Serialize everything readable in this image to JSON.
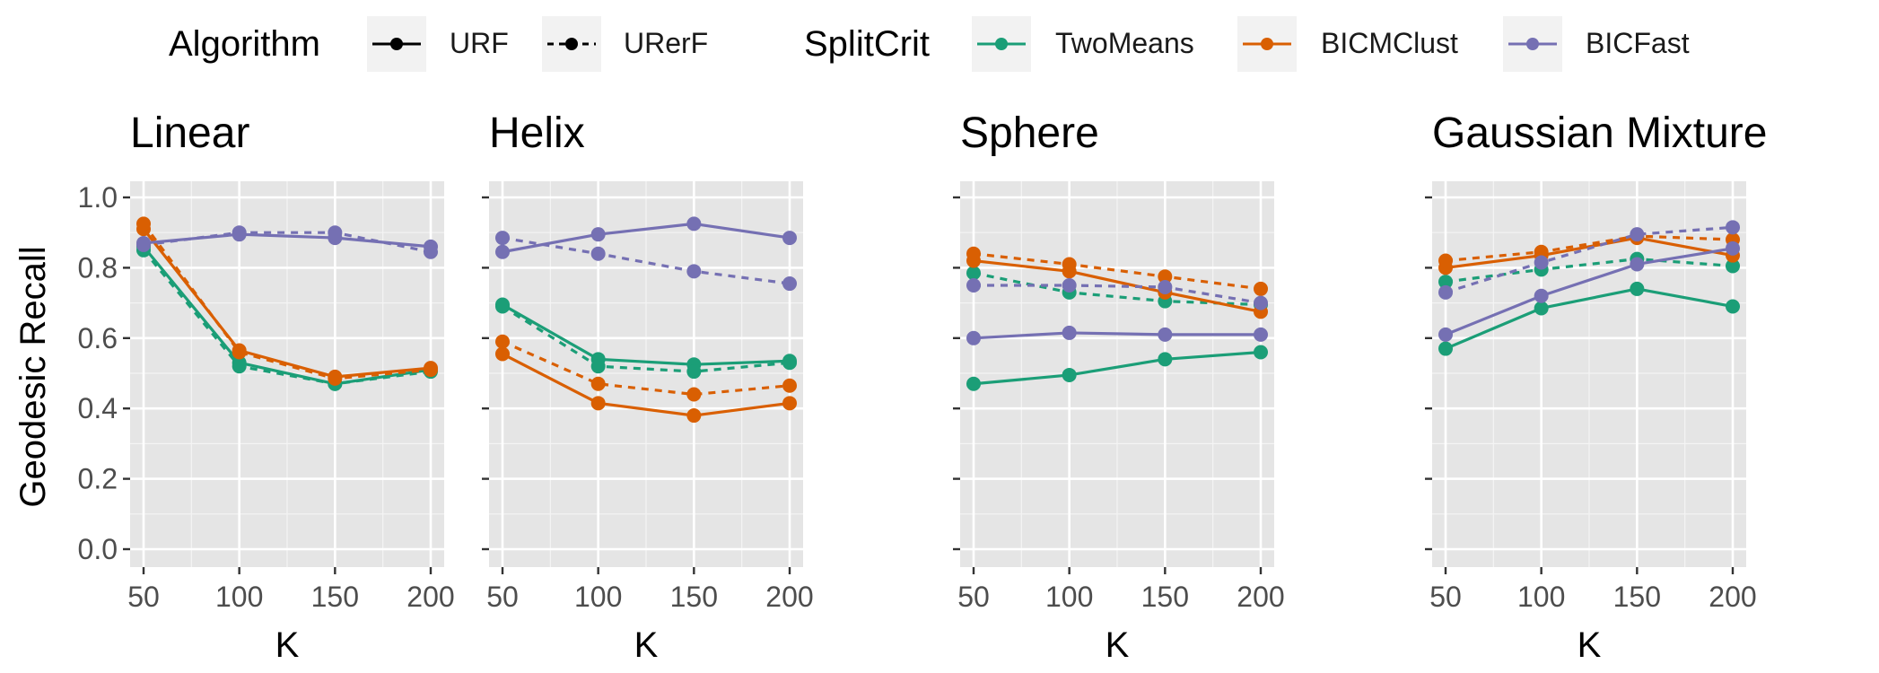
{
  "legend": {
    "algorithm_title": "Algorithm",
    "algorithm_items": [
      {
        "label": "URF",
        "dash": "solid"
      },
      {
        "label": "URerF",
        "dash": "dashed"
      }
    ],
    "splitcrit_title": "SplitCrit",
    "splitcrit_items": [
      {
        "label": "TwoMeans",
        "color": "#1b9e77"
      },
      {
        "label": "BICMClust",
        "color": "#d95f02"
      },
      {
        "label": "BICFast",
        "color": "#7570b3"
      }
    ]
  },
  "chart_data": {
    "type": "line",
    "ylabel": "Geodesic Recall",
    "xlabel": "K",
    "x": [
      50,
      100,
      150,
      200
    ],
    "xticks": [
      "50",
      "100",
      "150",
      "200"
    ],
    "yticks": [
      "0.0",
      "0.2",
      "0.4",
      "0.6",
      "0.8",
      "1.0"
    ],
    "ylim": [
      0,
      1
    ],
    "xlim": [
      50,
      200
    ],
    "grid": true,
    "legend_position": "top",
    "panels": [
      {
        "title": "Linear",
        "series": [
          {
            "algorithm": "URF",
            "splitcrit": "TwoMeans",
            "values": [
              0.86,
              0.53,
              0.47,
              0.51
            ]
          },
          {
            "algorithm": "URerF",
            "splitcrit": "TwoMeans",
            "values": [
              0.85,
              0.52,
              0.47,
              0.505
            ]
          },
          {
            "algorithm": "URF",
            "splitcrit": "BICMClust",
            "values": [
              0.91,
              0.565,
              0.49,
              0.515
            ]
          },
          {
            "algorithm": "URerF",
            "splitcrit": "BICMClust",
            "values": [
              0.925,
              0.56,
              0.485,
              0.51
            ]
          },
          {
            "algorithm": "URF",
            "splitcrit": "BICFast",
            "values": [
              0.87,
              0.895,
              0.885,
              0.86
            ]
          },
          {
            "algorithm": "URerF",
            "splitcrit": "BICFast",
            "values": [
              0.865,
              0.9,
              0.9,
              0.845
            ]
          }
        ]
      },
      {
        "title": "Helix",
        "series": [
          {
            "algorithm": "URF",
            "splitcrit": "TwoMeans",
            "values": [
              0.695,
              0.54,
              0.525,
              0.535
            ]
          },
          {
            "algorithm": "URerF",
            "splitcrit": "TwoMeans",
            "values": [
              0.69,
              0.52,
              0.505,
              0.53
            ]
          },
          {
            "algorithm": "URF",
            "splitcrit": "BICMClust",
            "values": [
              0.555,
              0.415,
              0.38,
              0.415
            ]
          },
          {
            "algorithm": "URerF",
            "splitcrit": "BICMClust",
            "values": [
              0.59,
              0.47,
              0.44,
              0.465
            ]
          },
          {
            "algorithm": "URF",
            "splitcrit": "BICFast",
            "values": [
              0.845,
              0.895,
              0.925,
              0.885
            ]
          },
          {
            "algorithm": "URerF",
            "splitcrit": "BICFast",
            "values": [
              0.885,
              0.84,
              0.79,
              0.755
            ]
          }
        ]
      },
      {
        "title": "Sphere",
        "series": [
          {
            "algorithm": "URF",
            "splitcrit": "TwoMeans",
            "values": [
              0.47,
              0.495,
              0.54,
              0.56
            ]
          },
          {
            "algorithm": "URerF",
            "splitcrit": "TwoMeans",
            "values": [
              0.785,
              0.73,
              0.705,
              0.695
            ]
          },
          {
            "algorithm": "URF",
            "splitcrit": "BICMClust",
            "values": [
              0.82,
              0.79,
              0.73,
              0.675
            ]
          },
          {
            "algorithm": "URerF",
            "splitcrit": "BICMClust",
            "values": [
              0.84,
              0.81,
              0.775,
              0.74
            ]
          },
          {
            "algorithm": "URF",
            "splitcrit": "BICFast",
            "values": [
              0.6,
              0.615,
              0.61,
              0.61
            ]
          },
          {
            "algorithm": "URerF",
            "splitcrit": "BICFast",
            "values": [
              0.75,
              0.75,
              0.745,
              0.7
            ]
          }
        ]
      },
      {
        "title": "Gaussian Mixture",
        "series": [
          {
            "algorithm": "URF",
            "splitcrit": "TwoMeans",
            "values": [
              0.57,
              0.685,
              0.74,
              0.69
            ]
          },
          {
            "algorithm": "URerF",
            "splitcrit": "TwoMeans",
            "values": [
              0.76,
              0.795,
              0.825,
              0.805
            ]
          },
          {
            "algorithm": "URF",
            "splitcrit": "BICMClust",
            "values": [
              0.8,
              0.835,
              0.885,
              0.835
            ]
          },
          {
            "algorithm": "URerF",
            "splitcrit": "BICMClust",
            "values": [
              0.82,
              0.845,
              0.89,
              0.88
            ]
          },
          {
            "algorithm": "URF",
            "splitcrit": "BICFast",
            "values": [
              0.61,
              0.72,
              0.81,
              0.855
            ]
          },
          {
            "algorithm": "URerF",
            "splitcrit": "BICFast",
            "values": [
              0.73,
              0.815,
              0.895,
              0.915
            ]
          }
        ]
      }
    ]
  }
}
